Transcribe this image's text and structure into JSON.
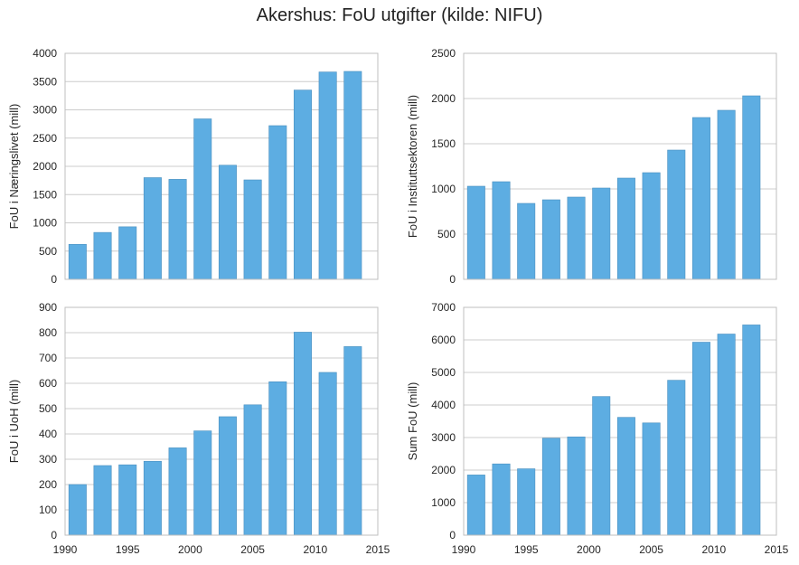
{
  "figure_title": "Akershus: FoU utgifter (kilde: NIFU)",
  "colors": {
    "bar": "#5DADE2",
    "bar_edge": "#4a8fbf",
    "grid": "#cccccc",
    "frame": "#bfbfbf"
  },
  "chart_data": [
    {
      "type": "bar",
      "panel": "top-left",
      "ylabel": "FoU i Næringslivet (mill)",
      "x": [
        1991,
        1993,
        1995,
        1997,
        1999,
        2001,
        2003,
        2005,
        2007,
        2009,
        2011,
        2013
      ],
      "values": [
        620,
        830,
        930,
        1800,
        1770,
        2840,
        2020,
        1760,
        2720,
        3350,
        3670,
        3680
      ],
      "xlim": [
        1990,
        2015
      ],
      "ylim": [
        0,
        4000
      ],
      "yticks": [
        0,
        500,
        1000,
        1500,
        2000,
        2500,
        3000,
        3500,
        4000
      ],
      "xticks": [],
      "grid": true
    },
    {
      "type": "bar",
      "panel": "top-right",
      "ylabel": "FoU i Instituttsektoren (mill)",
      "x": [
        1991,
        1993,
        1995,
        1997,
        1999,
        2001,
        2003,
        2005,
        2007,
        2009,
        2011,
        2013
      ],
      "values": [
        1030,
        1080,
        840,
        880,
        910,
        1010,
        1120,
        1180,
        1430,
        1790,
        1870,
        2030
      ],
      "xlim": [
        1990,
        2015
      ],
      "ylim": [
        0,
        2500
      ],
      "yticks": [
        0,
        500,
        1000,
        1500,
        2000,
        2500
      ],
      "xticks": [],
      "grid": true
    },
    {
      "type": "bar",
      "panel": "bottom-left",
      "ylabel": "FoU i UoH (mill)",
      "x": [
        1991,
        1993,
        1995,
        1997,
        1999,
        2001,
        2003,
        2005,
        2007,
        2009,
        2011,
        2013
      ],
      "values": [
        200,
        275,
        278,
        292,
        345,
        412,
        468,
        515,
        606,
        802,
        643,
        745
      ],
      "xlim": [
        1990,
        2015
      ],
      "ylim": [
        0,
        900
      ],
      "yticks": [
        0,
        100,
        200,
        300,
        400,
        500,
        600,
        700,
        800,
        900
      ],
      "xticks": [
        1990,
        1995,
        2000,
        2005,
        2010,
        2015
      ],
      "grid": true
    },
    {
      "type": "bar",
      "panel": "bottom-right",
      "ylabel": "Sum FoU (mill)",
      "x": [
        1991,
        1993,
        1995,
        1997,
        1999,
        2001,
        2003,
        2005,
        2007,
        2009,
        2011,
        2013
      ],
      "values": [
        1850,
        2190,
        2040,
        2980,
        3020,
        4260,
        3620,
        3450,
        4760,
        5930,
        6180,
        6460
      ],
      "xlim": [
        1990,
        2015
      ],
      "ylim": [
        0,
        7000
      ],
      "yticks": [
        0,
        1000,
        2000,
        3000,
        4000,
        5000,
        6000,
        7000
      ],
      "xticks": [
        1990,
        1995,
        2000,
        2005,
        2010,
        2015
      ],
      "grid": true
    }
  ]
}
